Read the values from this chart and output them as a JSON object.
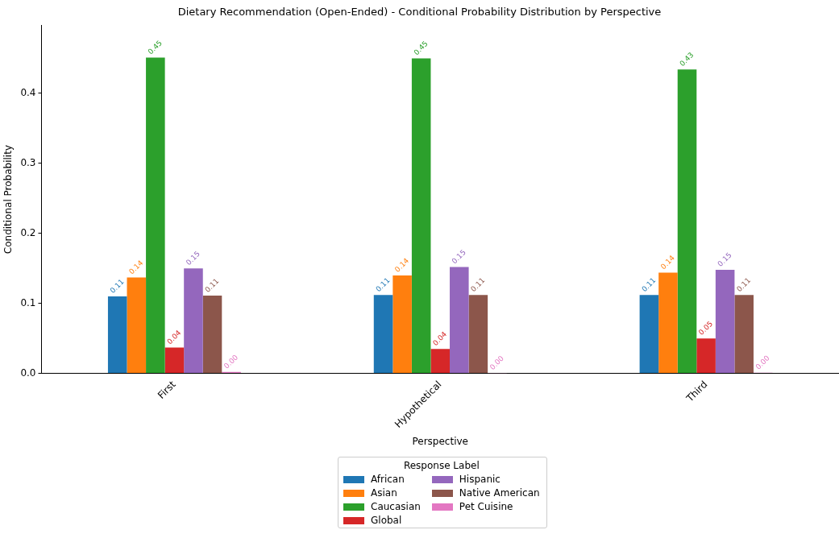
{
  "chart_data": {
    "type": "bar",
    "title": "Dietary Recommendation (Open-Ended) - Conditional Probability Distribution by Perspective",
    "xlabel": "Perspective",
    "ylabel": "Conditional Probability",
    "legend_title": "Response Label",
    "categories": [
      "First",
      "Hypothetical",
      "Third"
    ],
    "series": [
      {
        "name": "African",
        "color": "#1f77b4",
        "values": [
          0.11,
          0.112,
          0.112
        ],
        "value_labels": [
          "0.11",
          "0.11",
          "0.11"
        ]
      },
      {
        "name": "Asian",
        "color": "#ff7f0e",
        "values": [
          0.137,
          0.14,
          0.144
        ],
        "value_labels": [
          "0.14",
          "0.14",
          "0.14"
        ]
      },
      {
        "name": "Caucasian",
        "color": "#2ca02c",
        "values": [
          0.451,
          0.45,
          0.434
        ],
        "value_labels": [
          "0.45",
          "0.45",
          "0.43"
        ]
      },
      {
        "name": "Global",
        "color": "#d62728",
        "values": [
          0.037,
          0.035,
          0.05
        ],
        "value_labels": [
          "0.04",
          "0.04",
          "0.05"
        ]
      },
      {
        "name": "Hispanic",
        "color": "#9467bd",
        "values": [
          0.15,
          0.152,
          0.148
        ],
        "value_labels": [
          "0.15",
          "0.15",
          "0.15"
        ]
      },
      {
        "name": "Native American",
        "color": "#8c564b",
        "values": [
          0.111,
          0.112,
          0.112
        ],
        "value_labels": [
          "0.11",
          "0.11",
          "0.11"
        ]
      },
      {
        "name": "Pet Cuisine",
        "color": "#e377c2",
        "values": [
          0.002,
          0.0005,
          0.001
        ],
        "value_labels": [
          "0.00",
          "0.00",
          "0.00"
        ]
      }
    ],
    "ylim": [
      0,
      0.497
    ],
    "yticks": [
      {
        "value": 0,
        "label": "0.0"
      },
      {
        "value": 0.1,
        "label": "0.1"
      },
      {
        "value": 0.2,
        "label": "0.2"
      },
      {
        "value": 0.3,
        "label": "0.3"
      },
      {
        "value": 0.4,
        "label": "0.4"
      }
    ],
    "legend": "bottom"
  }
}
